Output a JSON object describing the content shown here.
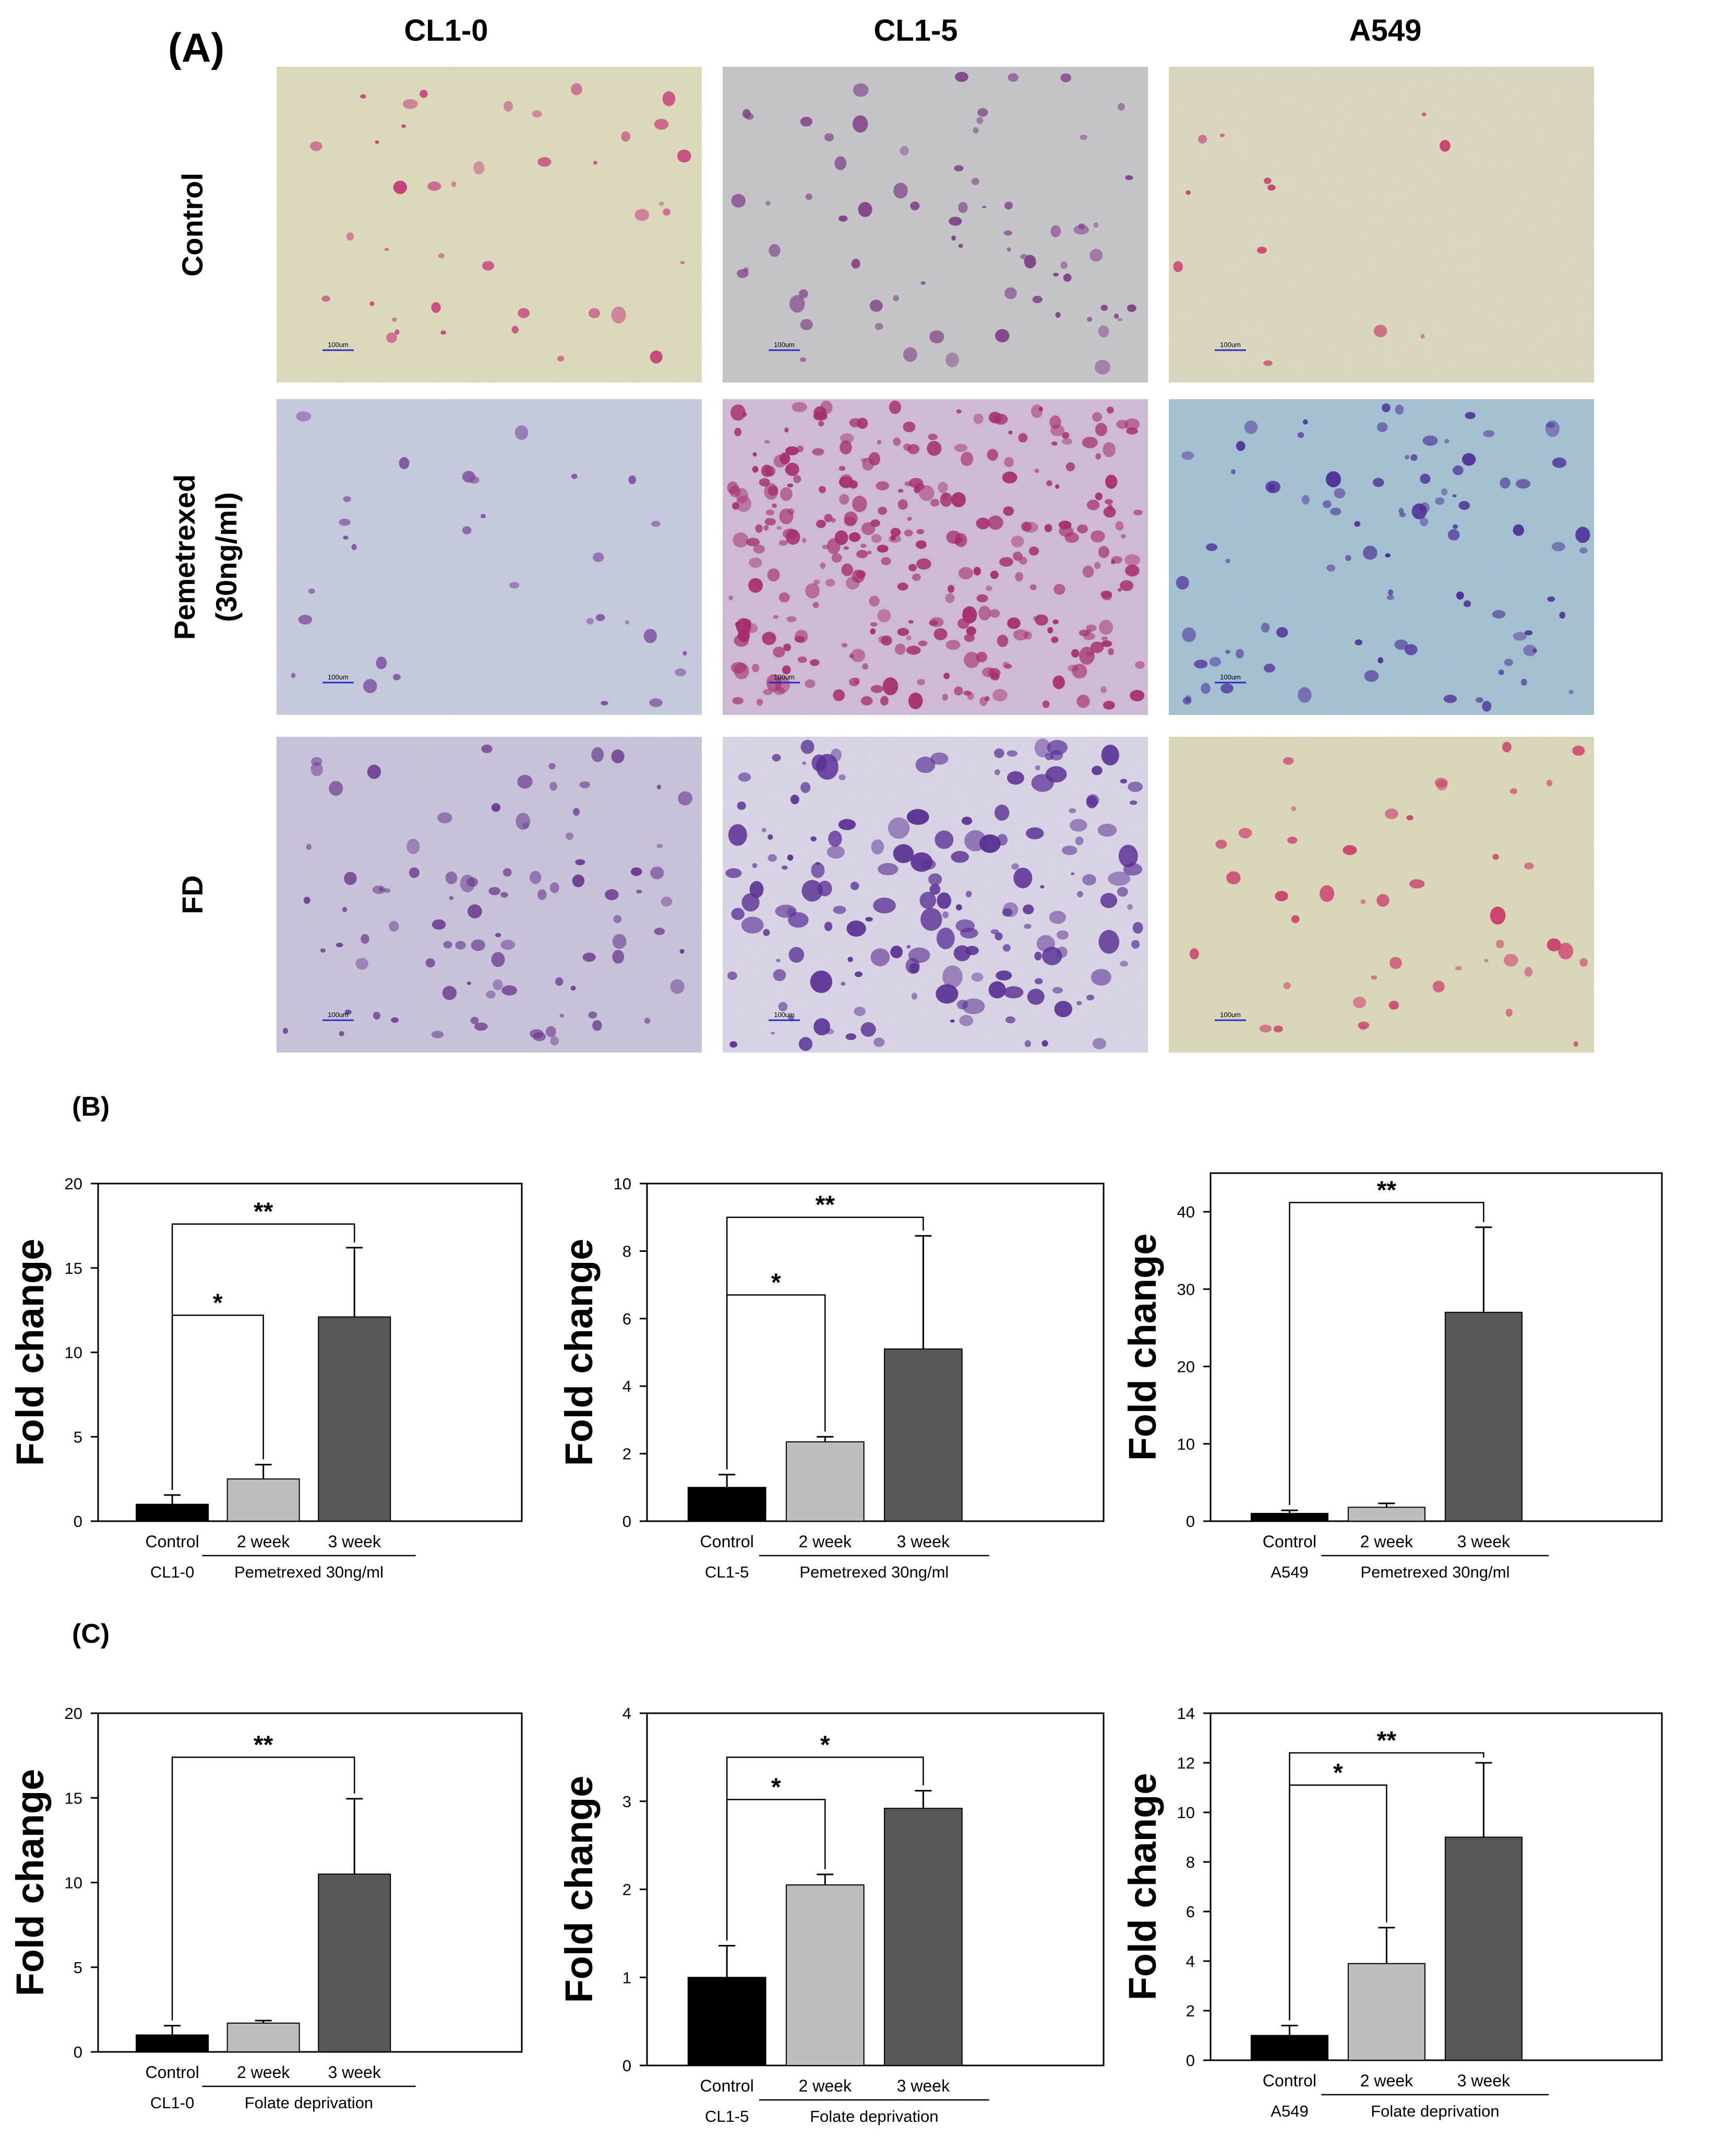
{
  "panel_labels": {
    "a": "(A)",
    "b": "(B)",
    "c": "(C)"
  },
  "micro": {
    "columns": [
      "CL1-0",
      "CL1-5",
      "A549"
    ],
    "rows": [
      {
        "label": [
          "Control"
        ]
      },
      {
        "label": [
          "Pemetrexed",
          "(30ng/ml)"
        ]
      },
      {
        "label": [
          "FD"
        ]
      }
    ],
    "scale_bar": "100um",
    "tints": [
      [
        "#e8e6c2",
        "#cfcdd0",
        "#e6e3c4"
      ],
      [
        "#cfd3e6",
        "#d8c2dc",
        "#a9c8dc"
      ],
      [
        "#d2cbe4",
        "#e5dff0",
        "#e6e2c0"
      ]
    ],
    "stains": [
      [
        "#c53a7a",
        "#7e3f86",
        "#c73a6e"
      ],
      [
        "#7b4a9e",
        "#a52c6e",
        "#4a2a94"
      ],
      [
        "#6a3a8e",
        "#5a2f94",
        "#cc3b6a"
      ]
    ]
  },
  "colors": {
    "control": "#000000",
    "week2": "#bdbdbd",
    "week3": "#575757"
  },
  "chart_data": [
    {
      "type": "bar",
      "panel": "B",
      "ylabel": "Fold change",
      "ylim": [
        0,
        20
      ],
      "yticks": [
        0,
        5,
        10,
        15,
        20
      ],
      "categories": [
        "Control",
        "2 week",
        "3 week"
      ],
      "values": [
        1.0,
        2.5,
        12.1
      ],
      "errors": [
        0.55,
        0.85,
        4.1
      ],
      "group_labels": {
        "control": "CL1-0",
        "treatment": "Pemetrexed 30ng/ml"
      },
      "significance": [
        {
          "from": 0,
          "to": 1,
          "y": 12.2,
          "label": "*"
        },
        {
          "from": 0,
          "to": 2,
          "y": 17.6,
          "label": "**"
        }
      ]
    },
    {
      "type": "bar",
      "panel": "B",
      "ylabel": "Fold change",
      "ylim": [
        0,
        10
      ],
      "yticks": [
        0,
        2,
        4,
        6,
        8,
        10
      ],
      "categories": [
        "Control",
        "2 week",
        "3 week"
      ],
      "values": [
        1.0,
        2.35,
        5.1
      ],
      "errors": [
        0.38,
        0.15,
        3.35
      ],
      "group_labels": {
        "control": "CL1-5",
        "treatment": "Pemetrexed 30ng/ml"
      },
      "significance": [
        {
          "from": 0,
          "to": 1,
          "y": 6.7,
          "label": "*"
        },
        {
          "from": 0,
          "to": 2,
          "y": 9.0,
          "label": "**"
        }
      ]
    },
    {
      "type": "bar",
      "panel": "B",
      "ylabel": "Fold change",
      "ylim": [
        0,
        45
      ],
      "yticks": [
        0,
        10,
        20,
        30,
        40
      ],
      "categories": [
        "Control",
        "2 week",
        "3 week"
      ],
      "values": [
        1.0,
        1.8,
        27.0
      ],
      "errors": [
        0.4,
        0.5,
        11.0
      ],
      "group_labels": {
        "control": "A549",
        "treatment": "Pemetrexed 30ng/ml"
      },
      "significance": [
        {
          "from": 0,
          "to": 2,
          "y": 41.2,
          "label": "**"
        }
      ]
    },
    {
      "type": "bar",
      "panel": "C",
      "ylabel": "Fold change",
      "ylim": [
        0,
        20
      ],
      "yticks": [
        0,
        5,
        10,
        15,
        20
      ],
      "categories": [
        "Control",
        "2 week",
        "3 week"
      ],
      "values": [
        1.0,
        1.7,
        10.5
      ],
      "errors": [
        0.55,
        0.15,
        4.45
      ],
      "group_labels": {
        "control": "CL1-0",
        "treatment": "Folate deprivation"
      },
      "significance": [
        {
          "from": 0,
          "to": 2,
          "y": 17.4,
          "label": "**"
        }
      ]
    },
    {
      "type": "bar",
      "panel": "C",
      "ylabel": "Fold change",
      "ylim": [
        0,
        4
      ],
      "yticks": [
        0,
        1,
        2,
        3,
        4
      ],
      "categories": [
        "Control",
        "2 week",
        "3 week"
      ],
      "values": [
        1.0,
        2.05,
        2.92
      ],
      "errors": [
        0.36,
        0.12,
        0.2
      ],
      "group_labels": {
        "control": "CL1-5",
        "treatment": "Folate deprivation"
      },
      "significance": [
        {
          "from": 0,
          "to": 1,
          "y": 3.02,
          "label": "*"
        },
        {
          "from": 0,
          "to": 2,
          "y": 3.5,
          "label": "*"
        }
      ]
    },
    {
      "type": "bar",
      "panel": "C",
      "ylabel": "Fold change",
      "ylim": [
        0,
        14
      ],
      "yticks": [
        0,
        2,
        4,
        6,
        8,
        10,
        12,
        14
      ],
      "categories": [
        "Control",
        "2 week",
        "3 week"
      ],
      "values": [
        1.0,
        3.9,
        9.0
      ],
      "errors": [
        0.4,
        1.45,
        3.0
      ],
      "group_labels": {
        "control": "A549",
        "treatment": "Folate deprivation"
      },
      "significance": [
        {
          "from": 0,
          "to": 1,
          "y": 11.1,
          "label": "*"
        },
        {
          "from": 0,
          "to": 2,
          "y": 12.4,
          "label": "**"
        }
      ]
    }
  ]
}
